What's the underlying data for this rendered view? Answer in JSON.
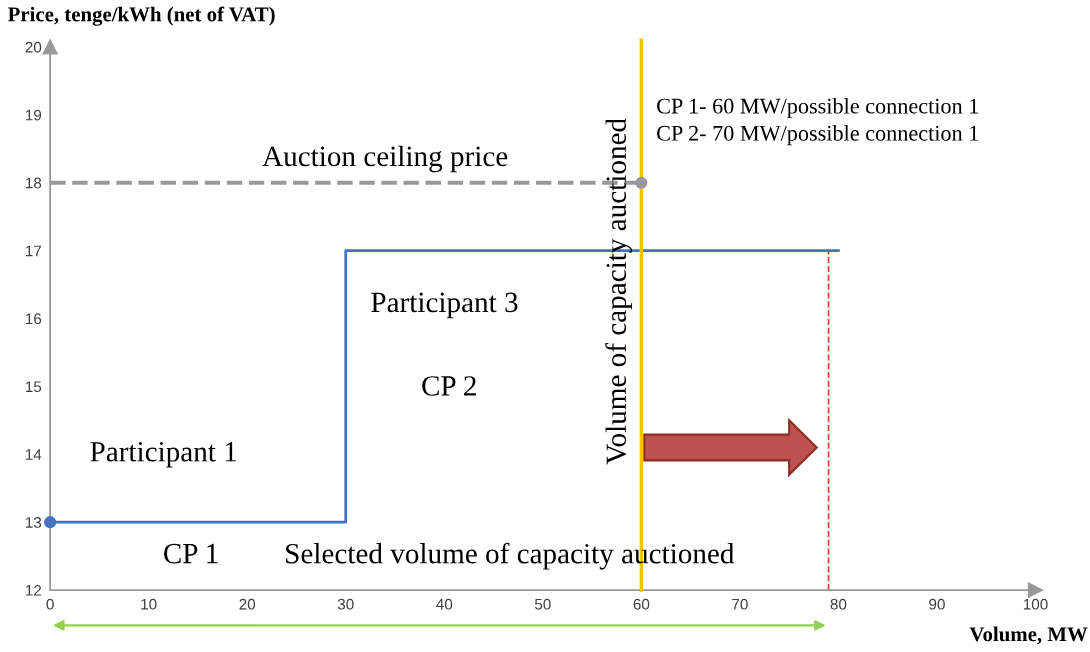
{
  "chart_data": {
    "type": "step",
    "xlabel": "Volume, MW",
    "ylabel": "Price, tenge/kWh (net of VAT)",
    "series": [
      {
        "color": "#4472c4",
        "x": [
          0,
          30,
          80
        ],
        "values": [
          13,
          17,
          17
        ]
      },
      {
        "type": "scatter",
        "color": "#4472c4",
        "x": [
          0
        ],
        "values": [
          13
        ]
      },
      {
        "type": "scatter",
        "color": "#999999",
        "x": [
          60
        ],
        "values": [
          18
        ]
      }
    ],
    "xlim": [
      0,
      100
    ],
    "xticks": [
      0,
      10,
      20,
      30,
      40,
      50,
      60,
      70,
      80,
      90,
      100
    ],
    "ylim": [
      12,
      20
    ],
    "yticks": [
      12,
      13,
      14,
      15,
      16,
      17,
      18,
      19,
      20
    ],
    "ref_lines": [
      {
        "axis": "y",
        "value": 18,
        "label": "Auction ceiling price",
        "color": "#999999",
        "line_style": "dashed"
      },
      {
        "axis": "x",
        "value": 60,
        "label": "Volume of capacity auctioned",
        "color": "#ffc000",
        "line_style": "solid"
      },
      {
        "axis": "x",
        "value": 79,
        "label": null,
        "color": "#e03c31",
        "line_style": "dashed"
      }
    ],
    "annotations": [
      "CP 1- 60 MW/possible connection 1",
      "CP 2- 70 MW/possible connection 1",
      "Participant 3",
      "CP 2",
      "Participant 1",
      "CP 1",
      "Selected volume of capacity auctioned"
    ],
    "grid": false,
    "legend": false
  }
}
